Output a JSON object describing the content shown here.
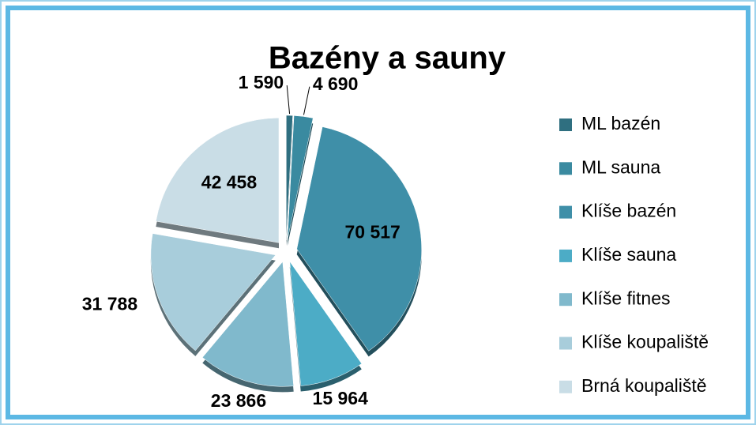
{
  "chart_data": {
    "type": "pie",
    "title": "Bazény a sauny",
    "categories": [
      "ML bazén",
      "ML sauna",
      "Klíše bazén",
      "Klíše sauna",
      "Klíše fitnes",
      "Klíše koupaliště",
      "Brná koupaliště"
    ],
    "values": [
      1590,
      4690,
      70517,
      15964,
      23866,
      31788,
      42458
    ],
    "value_labels": [
      "1 590",
      "4 690",
      "70 517",
      "15 964",
      "23 866",
      "31 788",
      "42 458"
    ],
    "colors": [
      "#2f6f80",
      "#3a8aa0",
      "#3f8fa8",
      "#4cacc6",
      "#80b9cc",
      "#a8cddb",
      "#c9dde6"
    ],
    "legend": "right"
  }
}
